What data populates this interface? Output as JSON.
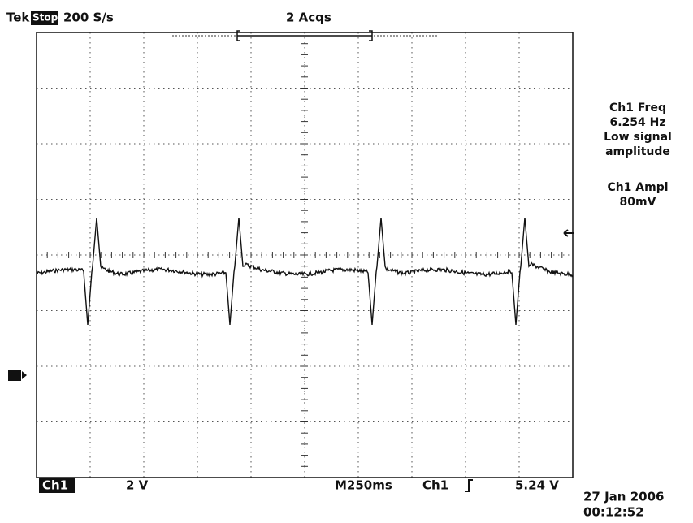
{
  "header": {
    "brand": "Tek",
    "state": "Stop",
    "sample_rate": "200 S/s",
    "acquisitions": "2 Acqs"
  },
  "measurements": [
    {
      "lines": [
        "Ch1 Freq",
        "6.254 Hz",
        "Low signal",
        "amplitude"
      ]
    },
    {
      "lines": [
        "Ch1 Ampl",
        "80mV"
      ]
    }
  ],
  "footer": {
    "channel": "Ch1",
    "volts_per_div": "2 V",
    "time_per_div": "M250ms",
    "trigger_source": "Ch1",
    "trigger_level": "5.24 V"
  },
  "timestamp": {
    "date": "27 Jan 2006",
    "time": "00:12:52"
  }
}
